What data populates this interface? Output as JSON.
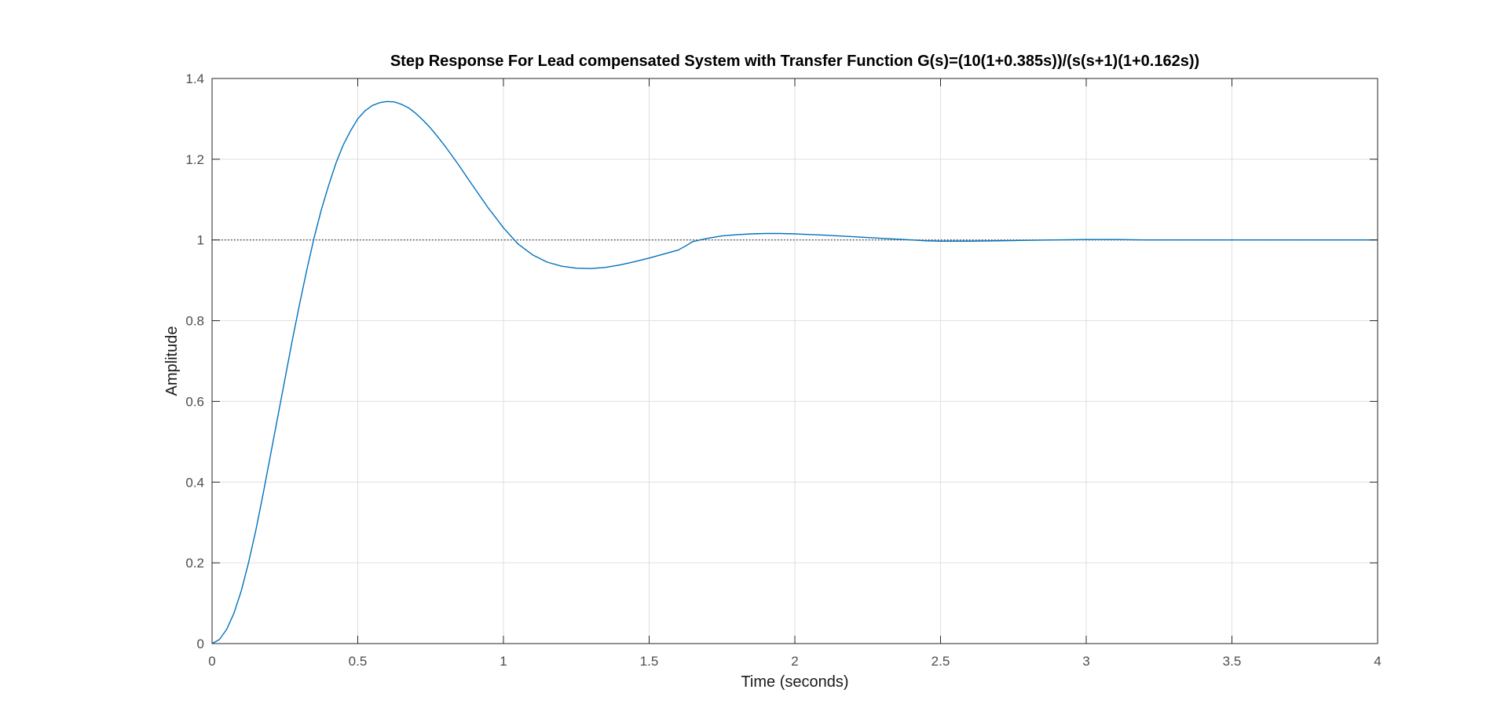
{
  "chart_data": {
    "type": "line",
    "title": "Step Response For Lead compensated System with Transfer Function G(s)=(10(1+0.385s))/(s(s+1)(1+0.162s))",
    "xlabel": "Time (seconds)",
    "ylabel": "Amplitude",
    "xlim": [
      0,
      4
    ],
    "ylim": [
      0,
      1.4
    ],
    "xticks": [
      0,
      0.5,
      1,
      1.5,
      2,
      2.5,
      3,
      3.5,
      4
    ],
    "xtick_labels": [
      "0",
      "0.5",
      "1",
      "1.5",
      "2",
      "2.5",
      "3",
      "3.5",
      "4"
    ],
    "yticks": [
      0,
      0.2,
      0.4,
      0.6,
      0.8,
      1,
      1.2,
      1.4
    ],
    "ytick_labels": [
      "0",
      "0.2",
      "0.4",
      "0.6",
      "0.8",
      "1",
      "1.2",
      "1.4"
    ],
    "grid": true,
    "reference_line": {
      "y": 1,
      "style": "dotted",
      "color": "#333333"
    },
    "series": [
      {
        "color": "#0072BD",
        "x": [
          0,
          0.025,
          0.05,
          0.075,
          0.1,
          0.125,
          0.15,
          0.175,
          0.2,
          0.225,
          0.25,
          0.275,
          0.3,
          0.325,
          0.35,
          0.375,
          0.4,
          0.425,
          0.45,
          0.475,
          0.5,
          0.525,
          0.55,
          0.575,
          0.6,
          0.625,
          0.65,
          0.675,
          0.7,
          0.725,
          0.75,
          0.775,
          0.8,
          0.825,
          0.85,
          0.875,
          0.9,
          0.925,
          0.95,
          0.975,
          1,
          1.05,
          1.1,
          1.15,
          1.2,
          1.25,
          1.3,
          1.35,
          1.4,
          1.45,
          1.5,
          1.55,
          1.6,
          1.625,
          1.65,
          1.7,
          1.75,
          1.8,
          1.85,
          1.9,
          1.95,
          2,
          2.1,
          2.2,
          2.3,
          2.4,
          2.45,
          2.5,
          2.6,
          2.7,
          2.8,
          2.9,
          3,
          3.1,
          3.2,
          3.3,
          3.4,
          3.5,
          3.6,
          3.7,
          3.8,
          3.9,
          4
        ],
        "y": [
          0,
          0.01,
          0.035,
          0.075,
          0.13,
          0.2,
          0.28,
          0.37,
          0.465,
          0.56,
          0.655,
          0.75,
          0.84,
          0.925,
          1.005,
          1.075,
          1.135,
          1.19,
          1.235,
          1.27,
          1.3,
          1.32,
          1.333,
          1.34,
          1.343,
          1.342,
          1.336,
          1.327,
          1.313,
          1.296,
          1.277,
          1.255,
          1.232,
          1.207,
          1.182,
          1.155,
          1.129,
          1.103,
          1.077,
          1.054,
          1.03,
          0.99,
          0.963,
          0.945,
          0.935,
          0.93,
          0.929,
          0.932,
          0.938,
          0.946,
          0.955,
          0.965,
          0.975,
          0.985,
          0.996,
          1.004,
          1.01,
          1.013,
          1.015,
          1.016,
          1.016,
          1.015,
          1.012,
          1.008,
          1.004,
          1.0,
          0.998,
          0.997,
          0.997,
          0.998,
          0.999,
          1.0,
          1.001,
          1.001,
          1.0,
          1.0,
          1.0,
          1.0,
          1.0,
          1.0,
          1.0,
          1.0,
          1.0
        ]
      }
    ]
  }
}
